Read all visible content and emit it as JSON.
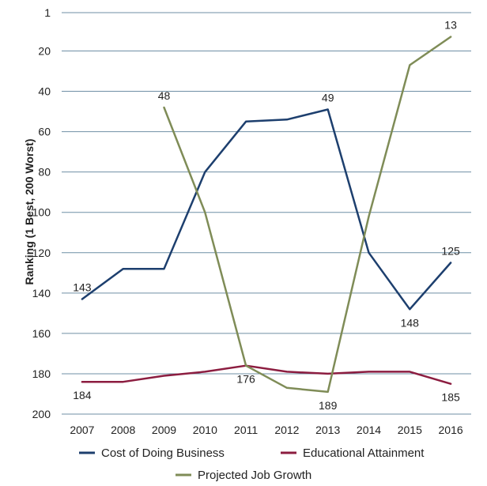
{
  "chart_data": {
    "type": "line",
    "ylabel": "Ranking (1 Best, 200 Worst)",
    "x": [
      "2007",
      "2008",
      "2009",
      "2010",
      "2011",
      "2012",
      "2013",
      "2014",
      "2015",
      "2016"
    ],
    "ylim": [
      1,
      200
    ],
    "y_inverted": true,
    "y_ticks": [
      {
        "value": 1,
        "label": "1"
      },
      {
        "value": 20,
        "label": "20"
      },
      {
        "value": 40,
        "label": "40"
      },
      {
        "value": 60,
        "label": "60"
      },
      {
        "value": 80,
        "label": "80"
      },
      {
        "value": 100,
        "label": "100"
      },
      {
        "value": 120,
        "label": "120"
      },
      {
        "value": 140,
        "label": "140"
      },
      {
        "value": 160,
        "label": "160"
      },
      {
        "value": 180,
        "label": "180"
      },
      {
        "value": 200,
        "label": "200"
      }
    ],
    "grid": true,
    "legend_position": "bottom",
    "series": [
      {
        "name": "Cost of Doing Business",
        "color": "#1d3f6e",
        "values": [
          143,
          128,
          128,
          80,
          55,
          54,
          49,
          120,
          148,
          125
        ],
        "labels": [
          {
            "index": 0,
            "text": "143",
            "pos": "above"
          },
          {
            "index": 6,
            "text": "49",
            "pos": "above"
          },
          {
            "index": 8,
            "text": "148",
            "pos": "below"
          },
          {
            "index": 9,
            "text": "125",
            "pos": "above"
          }
        ]
      },
      {
        "name": "Educational Attainment",
        "color": "#8c1d40",
        "values": [
          184,
          184,
          181,
          179,
          176,
          179,
          180,
          179,
          179,
          185
        ],
        "labels": [
          {
            "index": 0,
            "text": "184",
            "pos": "below"
          },
          {
            "index": 9,
            "text": "185",
            "pos": "below"
          }
        ]
      },
      {
        "name": "Projected Job Growth",
        "color": "#7f8c57",
        "start_index": 2,
        "values": [
          null,
          null,
          48,
          100,
          176,
          187,
          189,
          102,
          27,
          13
        ],
        "labels": [
          {
            "index": 2,
            "text": "48",
            "pos": "above"
          },
          {
            "index": 4,
            "text": "176",
            "pos": "below"
          },
          {
            "index": 6,
            "text": "189",
            "pos": "below"
          },
          {
            "index": 9,
            "text": "13",
            "pos": "above"
          }
        ]
      }
    ]
  }
}
